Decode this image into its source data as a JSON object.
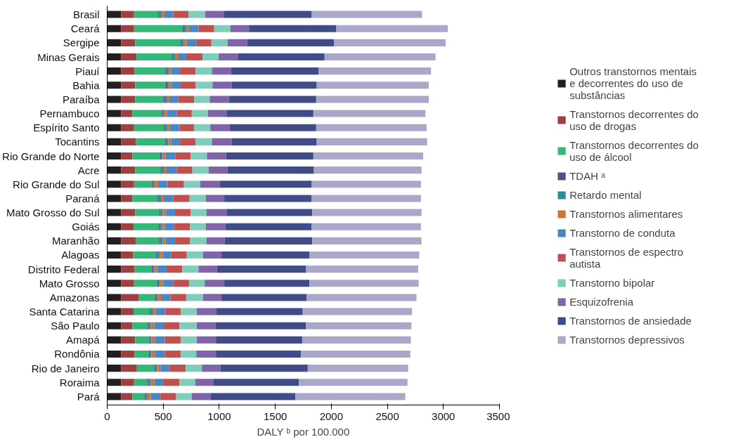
{
  "chart_data": {
    "type": "bar",
    "orientation": "horizontal",
    "stacked": true,
    "xlabel": "DALY ᵇ por 100.000",
    "xlim": [
      0,
      3500
    ],
    "xticks": [
      0,
      500,
      1000,
      1500,
      2000,
      2500,
      3000,
      3500
    ],
    "legend": "right",
    "categories": [
      "Brasil",
      "Ceará",
      "Sergipe",
      "Minas Gerais",
      "Piauí",
      "Bahia",
      "Paraíba",
      "Pernambuco",
      "Espírito Santo",
      "Tocantins",
      "Rio Grande do Norte",
      "Acre",
      "Rio Grande do Sul",
      "Paraná",
      "Mato Grosso do Sul",
      "Goiás",
      "Maranhão",
      "Alagoas",
      "Distrito Federal",
      "Mato Grosso",
      "Amazonas",
      "Santa Catarina",
      "São Paulo",
      "Amapá",
      "Rondônia",
      "Rio de Janeiro",
      "Roraima",
      "Pará"
    ],
    "series": [
      {
        "name": "Outros transtornos mentais e decorrentes do uso de substâncias",
        "color": "#231f20",
        "values": [
          125,
          125,
          125,
          125,
          125,
          125,
          125,
          125,
          125,
          125,
          125,
          125,
          125,
          125,
          125,
          125,
          125,
          125,
          125,
          125,
          125,
          125,
          125,
          125,
          125,
          125,
          125,
          125
        ]
      },
      {
        "name": "Transtornos decorrentes do uso de drogas",
        "color": "#9e3f40",
        "values": [
          115,
          115,
          125,
          135,
          120,
          125,
          125,
          100,
          115,
          130,
          100,
          125,
          115,
          100,
          125,
          110,
          130,
          105,
          120,
          115,
          155,
          110,
          100,
          125,
          120,
          140,
          115,
          100
        ]
      },
      {
        "name": "Transtornos decorrentes do uso de álcool",
        "color": "#35b779",
        "values": [
          215,
          430,
          405,
          320,
          270,
          270,
          250,
          260,
          265,
          260,
          245,
          230,
          160,
          225,
          215,
          225,
          210,
          205,
          150,
          205,
          145,
          145,
          135,
          125,
          125,
          155,
          120,
          110
        ]
      },
      {
        "name": "TDAH ᵃ",
        "color": "#5e4b8b",
        "values": [
          10,
          10,
          10,
          10,
          10,
          10,
          10,
          10,
          10,
          10,
          10,
          10,
          10,
          10,
          10,
          10,
          10,
          10,
          10,
          10,
          10,
          10,
          10,
          10,
          10,
          10,
          10,
          10
        ]
      },
      {
        "name": "Retardo mental",
        "color": "#2f8a9a",
        "values": [
          20,
          25,
          20,
          15,
          25,
          20,
          20,
          15,
          20,
          20,
          15,
          15,
          15,
          20,
          20,
          20,
          20,
          25,
          15,
          15,
          15,
          20,
          20,
          10,
          15,
          15,
          20,
          15
        ]
      },
      {
        "name": "Transtornos alimentares",
        "color": "#c8763a",
        "values": [
          25,
          25,
          25,
          25,
          25,
          25,
          25,
          25,
          25,
          25,
          25,
          25,
          30,
          25,
          30,
          25,
          25,
          25,
          25,
          30,
          30,
          25,
          30,
          30,
          30,
          30,
          30,
          30
        ]
      },
      {
        "name": "Transtorno de conduta",
        "color": "#4a86c5",
        "values": [
          80,
          85,
          85,
          75,
          75,
          80,
          80,
          85,
          85,
          80,
          90,
          90,
          85,
          85,
          80,
          85,
          85,
          75,
          85,
          90,
          85,
          85,
          85,
          90,
          90,
          85,
          80,
          85
        ]
      },
      {
        "name": "Transtornos de espectro autista",
        "color": "#c0504d",
        "values": [
          135,
          140,
          135,
          145,
          140,
          135,
          140,
          135,
          130,
          140,
          135,
          140,
          145,
          145,
          140,
          140,
          135,
          140,
          140,
          140,
          140,
          135,
          140,
          140,
          140,
          140,
          145,
          140
        ]
      },
      {
        "name": "Transtorno bipolar",
        "color": "#7fcdbb",
        "values": [
          150,
          145,
          145,
          145,
          145,
          150,
          140,
          145,
          145,
          145,
          145,
          145,
          145,
          145,
          140,
          140,
          145,
          145,
          145,
          140,
          150,
          145,
          155,
          145,
          140,
          145,
          140,
          140
        ]
      },
      {
        "name": "Esquizofrenia",
        "color": "#8064a8",
        "values": [
          165,
          165,
          175,
          170,
          170,
          170,
          170,
          165,
          175,
          175,
          170,
          170,
          175,
          165,
          180,
          175,
          165,
          165,
          165,
          175,
          165,
          175,
          165,
          170,
          175,
          165,
          165,
          170
        ]
      },
      {
        "name": "Transtornos de ansiedade",
        "color": "#404c87",
        "values": [
          785,
          780,
          775,
          775,
          780,
          760,
          780,
          775,
          770,
          760,
          780,
          770,
          820,
          780,
          765,
          770,
          780,
          785,
          795,
          760,
          760,
          770,
          810,
          770,
          760,
          780,
          760,
          755
        ]
      },
      {
        "name": "Transtornos depressivos",
        "color": "#aaa8c8",
        "values": [
          985,
          995,
          995,
          990,
          1005,
          1000,
          1005,
          1000,
          985,
          985,
          980,
          960,
          975,
          975,
          975,
          975,
          975,
          980,
          1000,
          975,
          980,
          975,
          940,
          970,
          975,
          895,
          970,
          980
        ]
      }
    ]
  }
}
